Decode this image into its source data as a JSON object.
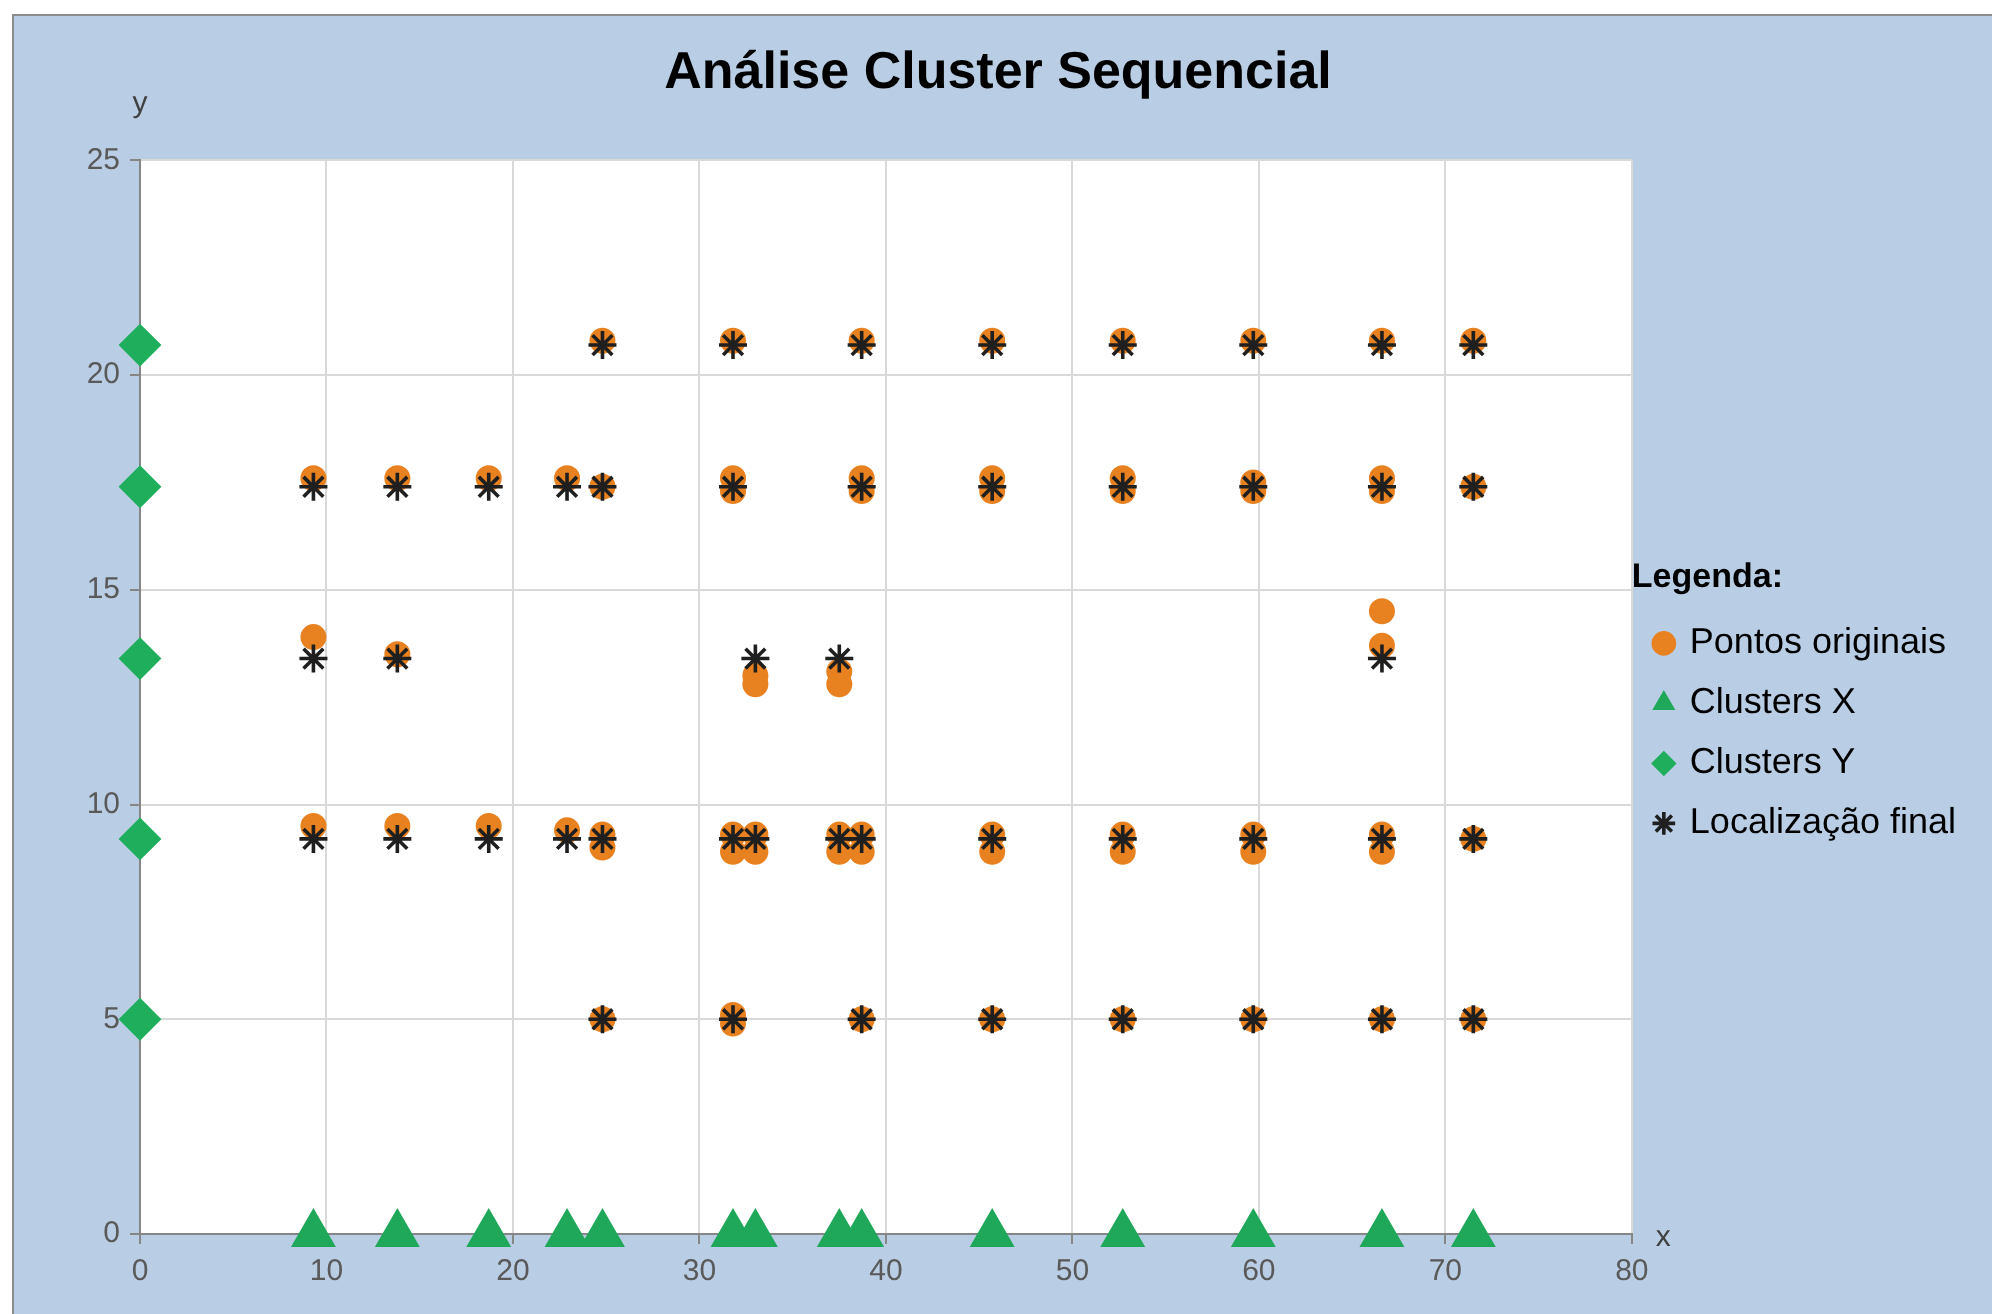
{
  "chart_data": {
    "type": "scatter",
    "title": "Análise Cluster Sequencial",
    "xlabel": "x",
    "ylabel": "y",
    "legend_title": "Legenda:",
    "legend": "right",
    "grid": true,
    "xlim": [
      0,
      80
    ],
    "xticks": [
      0,
      10,
      20,
      30,
      40,
      50,
      60,
      70,
      80
    ],
    "ylim": [
      0,
      25
    ],
    "yticks": [
      0,
      5,
      10,
      15,
      20,
      25
    ],
    "series": [
      {
        "name": "Pontos originais",
        "color": "#e8811f",
        "marker": "circle",
        "x": [
          24.8,
          31.8,
          38.7,
          45.7,
          52.7,
          59.7,
          66.6,
          71.5,
          9.3,
          13.8,
          18.7,
          22.9,
          24.8,
          31.8,
          31.8,
          38.7,
          38.7,
          45.7,
          45.7,
          52.7,
          52.7,
          59.7,
          59.7,
          66.6,
          66.6,
          71.5,
          9.3,
          13.8,
          33,
          33,
          37.5,
          37.5,
          66.6,
          66.6,
          9.3,
          13.8,
          18.7,
          22.9,
          24.8,
          24.8,
          31.8,
          31.8,
          33,
          33,
          37.5,
          37.5,
          38.7,
          38.7,
          45.7,
          45.7,
          52.7,
          52.7,
          59.7,
          59.7,
          66.6,
          66.6,
          71.5,
          24.8,
          31.8,
          31.8,
          38.7,
          45.7,
          52.7,
          59.7,
          66.6,
          71.5
        ],
        "values": [
          20.8,
          20.8,
          20.8,
          20.8,
          20.8,
          20.8,
          20.8,
          20.8,
          17.6,
          17.6,
          17.6,
          17.6,
          17.4,
          17.6,
          17.3,
          17.6,
          17.3,
          17.6,
          17.3,
          17.6,
          17.3,
          17.5,
          17.3,
          17.6,
          17.3,
          17.4,
          13.9,
          13.5,
          13.0,
          12.8,
          13.1,
          12.8,
          14.5,
          13.7,
          9.5,
          9.5,
          9.5,
          9.4,
          9.3,
          9.0,
          9.3,
          8.9,
          9.3,
          8.9,
          9.3,
          8.9,
          9.3,
          8.9,
          9.3,
          8.9,
          9.3,
          8.9,
          9.3,
          8.9,
          9.3,
          8.9,
          9.2,
          5.0,
          5.1,
          4.9,
          5.0,
          5.0,
          5.0,
          5.0,
          5.0,
          5.0
        ]
      },
      {
        "name": "Clusters X",
        "color": "#1fa85a",
        "marker": "triangle",
        "x": [
          9.3,
          13.8,
          18.7,
          22.9,
          24.8,
          31.8,
          33,
          37.5,
          38.7,
          45.7,
          52.7,
          59.7,
          66.6,
          71.5
        ],
        "values": [
          0,
          0,
          0,
          0,
          0,
          0,
          0,
          0,
          0,
          0,
          0,
          0,
          0,
          0
        ]
      },
      {
        "name": "Clusters Y",
        "color": "#1fae5c",
        "marker": "diamond",
        "x": [
          0,
          0,
          0,
          0,
          0
        ],
        "values": [
          20.7,
          17.4,
          13.4,
          9.2,
          5.0
        ]
      },
      {
        "name": "Localização final",
        "color": "#1f1f1f",
        "marker": "cross",
        "x": [
          24.8,
          31.8,
          38.7,
          45.7,
          52.7,
          59.7,
          66.6,
          71.5,
          9.3,
          13.8,
          18.7,
          22.9,
          24.8,
          31.8,
          38.7,
          45.7,
          52.7,
          59.7,
          66.6,
          71.5,
          9.3,
          13.8,
          33,
          37.5,
          66.6,
          9.3,
          13.8,
          18.7,
          22.9,
          24.8,
          31.8,
          33,
          37.5,
          38.7,
          45.7,
          52.7,
          59.7,
          66.6,
          71.5,
          24.8,
          31.8,
          38.7,
          45.7,
          52.7,
          59.7,
          66.6,
          71.5
        ],
        "values": [
          20.7,
          20.7,
          20.7,
          20.7,
          20.7,
          20.7,
          20.7,
          20.7,
          17.4,
          17.4,
          17.4,
          17.4,
          17.4,
          17.4,
          17.4,
          17.4,
          17.4,
          17.4,
          17.4,
          17.4,
          13.4,
          13.4,
          13.4,
          13.4,
          13.4,
          9.2,
          9.2,
          9.2,
          9.2,
          9.2,
          9.2,
          9.2,
          9.2,
          9.2,
          9.2,
          9.2,
          9.2,
          9.2,
          9.2,
          5.0,
          5.0,
          5.0,
          5.0,
          5.0,
          5.0,
          5.0,
          5.0
        ]
      }
    ]
  }
}
